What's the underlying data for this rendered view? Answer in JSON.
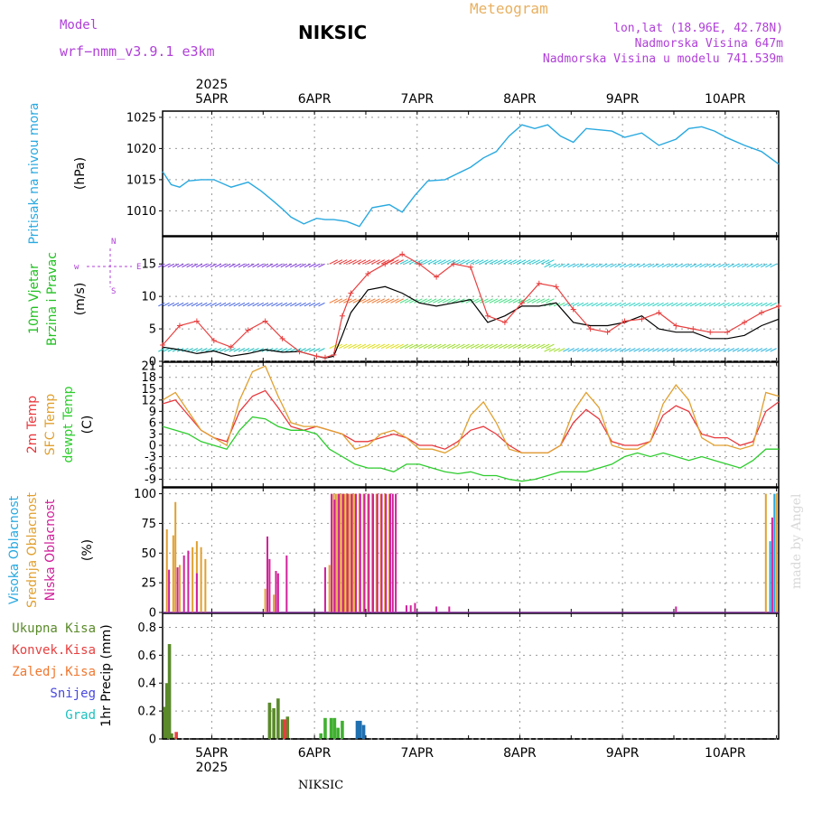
{
  "header": {
    "model_label": "Model",
    "model_name": "wrf−nmm_v3.9.1  e3km",
    "station": "NIKSIC",
    "meteogram": "Meteogram",
    "lonlat": "lon,lat (18.96E, 42.78N)",
    "altitude": "Nadmorska Visina 647m",
    "model_altitude": "Nadmorska Visina u modelu 741.539m",
    "footer_station": "NIKSIC",
    "watermark": "made by Angel"
  },
  "colors": {
    "pressure": "#29a9e0",
    "temp2m": "#e8383d",
    "sfc": "#e0a030",
    "dew": "#2ecc2e",
    "purple": "#b040d8",
    "magenta": "#d0209a",
    "total_precip": "#5a8a2a",
    "conv": "#e84040",
    "frz": "#f07830",
    "snow": "#4848e0",
    "grad": "#20c0c0",
    "wind_avg": "#000000",
    "gust": "#e84040"
  },
  "time_axis": {
    "year": "2025",
    "days": [
      "5APR",
      "6APR",
      "7APR",
      "8APR",
      "9APR",
      "10APR"
    ],
    "start_hour": 0,
    "end_hour": 144
  },
  "chart_data": [
    {
      "type": "line",
      "title": "Pritisak na nivou mora",
      "unit": "(hPa)",
      "ylim": [
        1006,
        1026
      ],
      "ticks": [
        1010,
        1015,
        1020,
        1025
      ],
      "series": [
        {
          "name": "Pritisak na nivou mora",
          "x": [
            0,
            2,
            4,
            6,
            9,
            12,
            16,
            20,
            23,
            26,
            28,
            30,
            33,
            36,
            38,
            40,
            43,
            46,
            49,
            53,
            56,
            59,
            62,
            66,
            69,
            72,
            75,
            78,
            81,
            84,
            87,
            90,
            93,
            96,
            99,
            102,
            105,
            108,
            112,
            116,
            120,
            123,
            126,
            129,
            132,
            136,
            140,
            144
          ],
          "values": [
            1016.3,
            1014.2,
            1013.8,
            1014.8,
            1015,
            1015,
            1013.8,
            1014.6,
            1013.2,
            1011.5,
            1010.3,
            1009,
            1007.9,
            1008.8,
            1008.6,
            1008.6,
            1008.3,
            1007.5,
            1010.5,
            1011,
            1009.8,
            1012.5,
            1014.8,
            1015,
            1016,
            1017,
            1018.5,
            1019.5,
            1022,
            1023.8,
            1023.2,
            1023.8,
            1022,
            1021,
            1023.2,
            1023,
            1022.8,
            1021.8,
            1022.5,
            1020.5,
            1021.5,
            1023.2,
            1023.5,
            1022.8,
            1021.7,
            1020.5,
            1019.5,
            1017.5
          ]
        }
      ]
    },
    {
      "type": "line",
      "title": "10m Vjetar Brzina i Pravac",
      "unit": "(m/s)",
      "ylim": [
        0,
        19.2
      ],
      "ticks": [
        0,
        5,
        10,
        15
      ],
      "compass": "w ←|→ E",
      "series": [
        {
          "name": "Brzina",
          "x": [
            0,
            4,
            8,
            12,
            16,
            20,
            24,
            28,
            32,
            36,
            38,
            40,
            42,
            44,
            48,
            52,
            56,
            60,
            64,
            68,
            72,
            76,
            80,
            84,
            88,
            92,
            96,
            100,
            104,
            108,
            112,
            116,
            120,
            124,
            128,
            132,
            136,
            140,
            144
          ],
          "values": [
            2.2,
            1.8,
            1.2,
            1.6,
            0.8,
            1.2,
            1.8,
            1.4,
            1.5,
            0.8,
            0.5,
            0.8,
            4,
            7.5,
            11,
            11.5,
            10.5,
            9,
            8.5,
            9,
            9.5,
            6,
            7,
            8.5,
            8.5,
            9,
            6,
            5.5,
            5.5,
            6,
            7,
            5,
            4.5,
            4.5,
            3.5,
            3.5,
            4,
            5.5,
            6.5
          ]
        },
        {
          "name": "Udar",
          "x": [
            0,
            4,
            8,
            12,
            16,
            20,
            24,
            28,
            32,
            36,
            38,
            40,
            42,
            44,
            48,
            52,
            56,
            60,
            64,
            68,
            72,
            76,
            80,
            84,
            88,
            92,
            96,
            100,
            104,
            108,
            112,
            116,
            120,
            124,
            128,
            132,
            136,
            140,
            144
          ],
          "values": [
            2.5,
            5.5,
            6.2,
            3.2,
            2.2,
            4.8,
            6.2,
            3.5,
            1.5,
            0.8,
            0.6,
            1,
            7,
            10.5,
            13.5,
            15,
            16.5,
            15,
            13,
            15,
            14.5,
            7,
            6,
            9,
            12,
            11.5,
            8,
            5,
            4.5,
            6.2,
            6.5,
            7.5,
            5.5,
            5,
            4.5,
            4.5,
            6,
            7.5,
            8.5
          ]
        }
      ]
    },
    {
      "type": "line",
      "title": "Temperature",
      "unit": "(C)",
      "ylim": [
        -11,
        22
      ],
      "ticks": [
        -9,
        -6,
        -3,
        0,
        3,
        6,
        9,
        12,
        15,
        18,
        21
      ],
      "series": [
        {
          "name": "2m Temp",
          "x": [
            0,
            3,
            6,
            9,
            12,
            15,
            18,
            21,
            24,
            27,
            30,
            33,
            36,
            39,
            42,
            45,
            48,
            51,
            54,
            57,
            60,
            63,
            66,
            69,
            72,
            75,
            78,
            81,
            84,
            87,
            90,
            93,
            96,
            99,
            102,
            105,
            108,
            111,
            114,
            117,
            120,
            123,
            126,
            129,
            132,
            135,
            138,
            141,
            144
          ],
          "values": [
            11,
            12,
            8,
            4,
            2,
            1,
            9,
            13,
            14.5,
            10,
            5,
            4,
            5,
            4,
            3,
            1,
            1,
            2,
            3,
            2,
            0,
            0,
            -1,
            1,
            4,
            5,
            3,
            0,
            -2,
            -2,
            -2,
            0,
            6,
            9.5,
            7,
            1,
            0,
            0,
            1,
            8,
            10.5,
            9,
            3,
            2,
            2,
            0,
            1,
            9,
            11.5
          ]
        },
        {
          "name": "SFC Temp",
          "x": [
            0,
            3,
            6,
            9,
            12,
            15,
            18,
            21,
            24,
            27,
            30,
            33,
            36,
            39,
            42,
            45,
            48,
            51,
            54,
            57,
            60,
            63,
            66,
            69,
            72,
            75,
            78,
            81,
            84,
            87,
            90,
            93,
            96,
            99,
            102,
            105,
            108,
            111,
            114,
            117,
            120,
            123,
            126,
            129,
            132,
            135,
            138,
            141,
            144
          ],
          "values": [
            12,
            14,
            9,
            4,
            2,
            0,
            12,
            19.5,
            21,
            13,
            6,
            5,
            5,
            4,
            3,
            -1,
            0,
            3,
            4,
            2,
            -1,
            -1,
            -2,
            0,
            8,
            11.5,
            6,
            -1,
            -2,
            -2,
            -2,
            0,
            9,
            14,
            10,
            0,
            -1,
            -1,
            1,
            11,
            16,
            12,
            2,
            0,
            0,
            -1,
            0,
            14,
            13
          ]
        },
        {
          "name": "dewpt Temp",
          "x": [
            0,
            3,
            6,
            9,
            12,
            15,
            18,
            21,
            24,
            27,
            30,
            33,
            36,
            39,
            42,
            45,
            48,
            51,
            54,
            57,
            60,
            63,
            66,
            69,
            72,
            75,
            78,
            81,
            84,
            87,
            90,
            93,
            96,
            99,
            102,
            105,
            108,
            111,
            114,
            117,
            120,
            123,
            126,
            129,
            132,
            135,
            138,
            141,
            144
          ],
          "values": [
            5,
            4,
            3,
            1,
            0,
            -1,
            4,
            7.5,
            7,
            5,
            4,
            4,
            3,
            -1,
            -3,
            -5,
            -6,
            -6,
            -7,
            -5,
            -5,
            -6,
            -7,
            -7.5,
            -7,
            -8,
            -8,
            -9,
            -9.5,
            -9,
            -8,
            -7,
            -7,
            -7,
            -6,
            -5,
            -3,
            -2,
            -3,
            -2,
            -3,
            -4,
            -3,
            -4,
            -5,
            -6,
            -4,
            -1,
            -1
          ]
        }
      ]
    },
    {
      "type": "bar",
      "title": "Oblacnost",
      "unit": "(%)",
      "ylim": [
        0,
        105
      ],
      "ticks": [
        0,
        25,
        50,
        75,
        100
      ],
      "series": [
        {
          "name": "Visoka Oblacnost",
          "x": [
            142,
            143
          ],
          "values": [
            60,
            100
          ]
        },
        {
          "name": "Srednja Oblacnost",
          "x": [
            1,
            2.5,
            3,
            4,
            7,
            8,
            9,
            10,
            24,
            26,
            39,
            40,
            40.5,
            41,
            41.5,
            42,
            42.5,
            43,
            43.5,
            44,
            44.5,
            45,
            46,
            47,
            48,
            49,
            50,
            51,
            52,
            53,
            141,
            143.5
          ],
          "values": [
            70,
            65,
            93,
            40,
            55,
            60,
            55,
            45,
            20,
            15,
            40,
            100,
            100,
            100,
            100,
            100,
            100,
            100,
            100,
            100,
            100,
            100,
            100,
            100,
            100,
            100,
            100,
            100,
            100,
            100,
            100,
            100
          ]
        },
        {
          "name": "Niska Oblacnost",
          "x": [
            1.5,
            3.5,
            5,
            6,
            8,
            24.5,
            25,
            26.5,
            27,
            29,
            38,
            39.5,
            40.2,
            41.2,
            42.2,
            43.2,
            44.2,
            45.2,
            46.2,
            47.2,
            48.2,
            49.2,
            50.2,
            51.2,
            52.2,
            53.2,
            53.8,
            54.5,
            57,
            58,
            59,
            64,
            67,
            120,
            142.5
          ],
          "values": [
            36,
            38,
            48,
            52,
            33,
            64,
            45,
            35,
            33,
            48,
            38,
            100,
            95,
            100,
            100,
            100,
            100,
            100,
            100,
            100,
            100,
            100,
            100,
            100,
            100,
            100,
            100,
            100,
            6,
            6,
            8,
            5,
            5,
            5,
            80
          ]
        }
      ]
    },
    {
      "type": "bar",
      "title": "1hr Precip",
      "unit": "(mm)",
      "ylim": [
        0,
        0.9
      ],
      "ticks": [
        0,
        0.2,
        0.4,
        0.6,
        0.8
      ],
      "legend": [
        "Ukupna Kisa",
        "Konvek.Kisa",
        "Zaledj.Kisa",
        "Snijeg",
        "Grad"
      ],
      "series": [
        {
          "name": "Ukupna Kisa",
          "x": [
            0.5,
            1,
            1.6,
            2.1,
            2.6,
            25,
            26,
            27,
            28,
            29.2,
            37,
            38,
            39.4,
            40.2,
            41,
            42
          ],
          "values": [
            0.23,
            0.4,
            0.68,
            0.04,
            0.01,
            0.26,
            0.22,
            0.29,
            0.14,
            0.16,
            0.04,
            0.15,
            0.15,
            0.15,
            0.08,
            0.13
          ]
        },
        {
          "name": "Konvek.Kisa",
          "x": [
            3.2,
            28.6
          ],
          "values": [
            0.05,
            0.14
          ]
        },
        {
          "name": "Snijeg",
          "x": [
            45.5,
            46.2,
            47
          ],
          "values": [
            0.13,
            0.13,
            0.1
          ]
        }
      ]
    }
  ],
  "panel_labels": {
    "p1": [
      "Pritisak na nivou mora"
    ],
    "p1_unit": "(hPa)",
    "p2": [
      "10m Vjetar",
      "Brzina i Pravac"
    ],
    "p2_unit": "(m/s)",
    "p3": [
      "2m Temp",
      "SFC Temp",
      "dewpt Temp"
    ],
    "p3_unit": "(C)",
    "p4": [
      "Visoka Oblacnost",
      "Srednja Oblacnost",
      "Niska Oblacnost"
    ],
    "p4_unit": "(%)",
    "p5_unit": "1hr Precip (mm)"
  }
}
